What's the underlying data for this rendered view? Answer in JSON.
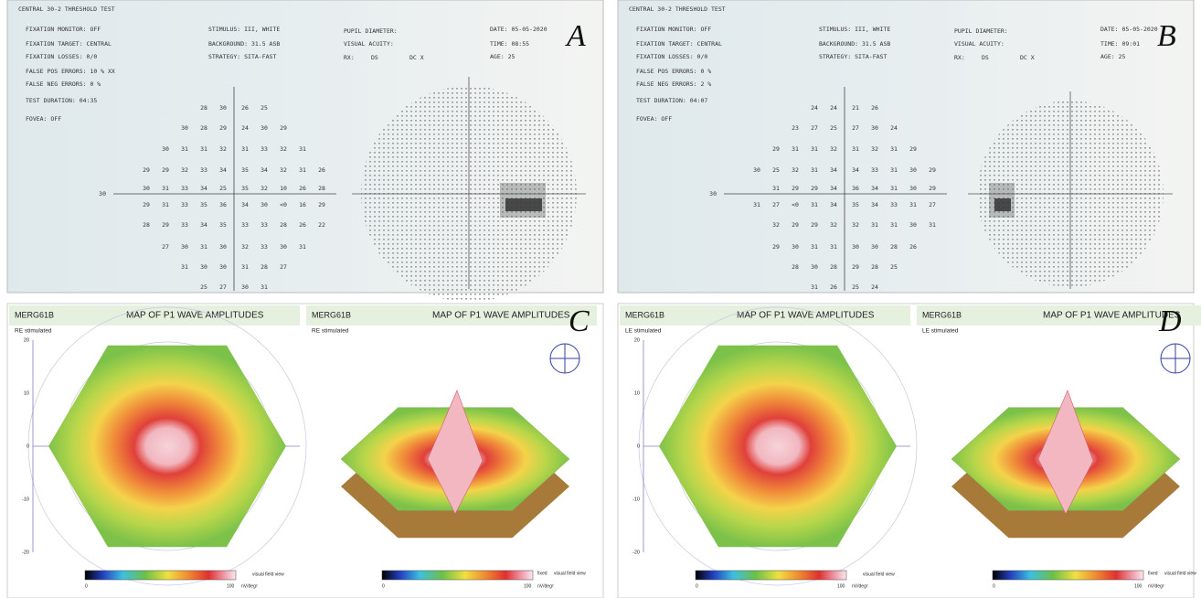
{
  "panels": [
    {
      "type": "field",
      "label": "A",
      "title": "CENTRAL 30-2 THRESHOLD TEST",
      "left_fields": [
        "FIXATION MONITOR: OFF",
        "FIXATION TARGET: CENTRAL",
        "FIXATION LOSSES: 0/0",
        "FALSE POS ERRORS: 10 % XX",
        "FALSE NEG ERRORS: 0 %",
        "TEST DURATION: 04:35",
        "FOVEA: OFF"
      ],
      "mid_fields": [
        "STIMULUS: III, WHITE",
        "BACKGROUND: 31.5 ASB",
        "STRATEGY: SITA-FAST"
      ],
      "pupil_fields": [
        "PUPIL DIAMETER:",
        "VISUAL ACUITY:"
      ],
      "rx_fields": [
        "RX:",
        "DS",
        "DC X"
      ],
      "right_fields": [
        "DATE: 05-05-2020",
        "TIME: 08:55",
        "AGE: 25"
      ],
      "axis_label": "30",
      "rows": [
        {
          "left": [
            "28",
            "30"
          ],
          "right": [
            "26",
            "25"
          ]
        },
        {
          "left": [
            "30",
            "28",
            "29"
          ],
          "right": [
            "24",
            "30",
            "29"
          ]
        },
        {
          "left": [
            "30",
            "31",
            "31",
            "32"
          ],
          "right": [
            "31",
            "33",
            "32",
            "31"
          ]
        },
        {
          "left": [
            "29",
            "29",
            "32",
            "33",
            "34"
          ],
          "right": [
            "35",
            "34",
            "32",
            "31",
            "26"
          ]
        },
        {
          "left": [
            "30",
            "31",
            "33",
            "34",
            "25"
          ],
          "right": [
            "35",
            "32",
            "10",
            "26",
            "28"
          ]
        },
        {
          "left": [
            "29",
            "31",
            "33",
            "35",
            "36"
          ],
          "right": [
            "34",
            "30",
            "<0",
            "16",
            "29"
          ]
        },
        {
          "left": [
            "28",
            "29",
            "33",
            "34",
            "35"
          ],
          "right": [
            "33",
            "33",
            "28",
            "26",
            "22"
          ]
        },
        {
          "left": [
            "27",
            "30",
            "31",
            "30"
          ],
          "right": [
            "32",
            "33",
            "30",
            "31"
          ]
        },
        {
          "left": [
            "31",
            "30",
            "30"
          ],
          "right": [
            "31",
            "28",
            "27"
          ]
        },
        {
          "left": [
            "25",
            "27"
          ],
          "right": [
            "30",
            "31"
          ]
        }
      ]
    },
    {
      "type": "field",
      "label": "B",
      "title": "CENTRAL 30-2 THRESHOLD TEST",
      "left_fields": [
        "FIXATION MONITOR: OFF",
        "FIXATION TARGET: CENTRAL",
        "FIXATION LOSSES: 0/0",
        "FALSE POS ERRORS: 0 %",
        "FALSE NEG ERRORS: 2 %",
        "TEST DURATION: 04:07",
        "FOVEA: OFF"
      ],
      "mid_fields": [
        "STIMULUS: III, WHITE",
        "BACKGROUND: 31.5 ASB",
        "STRATEGY: SITA-FAST"
      ],
      "pupil_fields": [
        "PUPIL DIAMETER:",
        "VISUAL ACUITY:"
      ],
      "rx_fields": [
        "RX:",
        "DS",
        "DC X"
      ],
      "right_fields": [
        "DATE: 05-05-2020",
        "TIME: 09:01",
        "AGE: 25"
      ],
      "axis_label": "30",
      "rows": [
        {
          "left": [
            "24",
            "24"
          ],
          "right": [
            "21",
            "26"
          ]
        },
        {
          "left": [
            "23",
            "27",
            "25"
          ],
          "right": [
            "27",
            "30",
            "24"
          ]
        },
        {
          "left": [
            "29",
            "31",
            "31",
            "32"
          ],
          "right": [
            "31",
            "32",
            "31",
            "29"
          ]
        },
        {
          "left": [
            "30",
            "25",
            "32",
            "31",
            "34"
          ],
          "right": [
            "34",
            "33",
            "31",
            "30",
            "29"
          ]
        },
        {
          "left": [
            "31",
            "29",
            "29",
            "34"
          ],
          "right": [
            "36",
            "34",
            "31",
            "30",
            "29"
          ]
        },
        {
          "left": [
            "31",
            "27",
            "<0",
            "31",
            "34"
          ],
          "right": [
            "35",
            "34",
            "33",
            "31",
            "27"
          ]
        },
        {
          "left": [
            "32",
            "29",
            "29",
            "32"
          ],
          "right": [
            "32",
            "31",
            "31",
            "30",
            "31"
          ]
        },
        {
          "left": [
            "29",
            "30",
            "31",
            "31"
          ],
          "right": [
            "30",
            "30",
            "28",
            "26"
          ]
        },
        {
          "left": [
            "28",
            "30",
            "28"
          ],
          "right": [
            "29",
            "28",
            "25"
          ]
        },
        {
          "left": [
            "31",
            "26"
          ],
          "right": [
            "25",
            "24"
          ]
        }
      ]
    },
    {
      "type": "merg",
      "label": "C",
      "device": "MERG61B",
      "title": "MAP OF P1 WAVE AMPLITUDES",
      "eye": "RE stimulated",
      "view": "visual field view",
      "scale_min": "0",
      "scale_max": "100",
      "unit": "nV/deg²",
      "fixed": "fixed",
      "axis_ticks": [
        "20",
        "10",
        "0",
        "-10",
        "-20"
      ]
    },
    {
      "type": "merg",
      "label": "D",
      "device": "MERG61B",
      "title": "MAP OF P1 WAVE AMPLITUDES",
      "eye": "LE stimulated",
      "view": "visual field view",
      "scale_min": "0",
      "scale_max": "100",
      "unit": "nV/deg²",
      "fixed": "fixed",
      "axis_ticks": [
        "20",
        "10",
        "0",
        "-10",
        "-20"
      ]
    }
  ]
}
